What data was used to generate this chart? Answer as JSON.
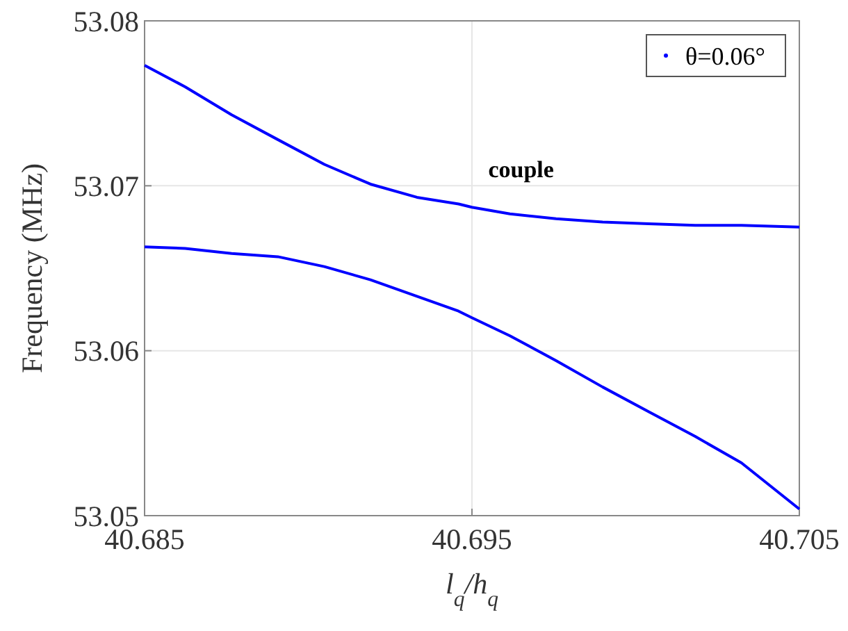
{
  "chart_data": {
    "type": "line",
    "xlabel": "l$_{q}$/h$_{q}$",
    "ylabel": "Frequency (MHz)",
    "annotations": [
      "couple"
    ],
    "xlim": [
      40.685,
      40.705
    ],
    "xticks": [
      40.685,
      40.695,
      40.705
    ],
    "ylim": [
      53.05,
      53.08
    ],
    "yticks": [
      53.05,
      53.06,
      53.07,
      53.08
    ],
    "grid": true,
    "legend": "top right",
    "series": [
      {
        "name": "θ=0.06°",
        "color": "#0000ff",
        "x": [
          40.685,
          40.68624,
          40.68766,
          40.68907,
          40.69049,
          40.6919,
          40.69332,
          40.69459,
          40.695,
          40.69616,
          40.69757,
          40.69899,
          40.7004,
          40.70182,
          40.70323,
          40.705
        ],
        "values": [
          53.0773,
          53.076,
          53.0743,
          53.0728,
          53.0713,
          53.0701,
          53.0693,
          53.0689,
          53.0687,
          53.0683,
          53.068,
          53.0678,
          53.0677,
          53.0676,
          53.0676,
          53.0675
        ]
      },
      {
        "color": "#0000ff",
        "x": [
          40.685,
          40.68624,
          40.68766,
          40.68907,
          40.69049,
          40.6919,
          40.69332,
          40.69459,
          40.695,
          40.69616,
          40.69757,
          40.69899,
          40.7004,
          40.70182,
          40.70323,
          40.705
        ],
        "values": [
          53.0663,
          53.0662,
          53.0659,
          53.0657,
          53.0651,
          53.0643,
          53.0633,
          53.0624,
          53.062,
          53.0609,
          53.0594,
          53.0578,
          53.0563,
          53.0548,
          53.0532,
          53.0504
        ]
      }
    ]
  }
}
